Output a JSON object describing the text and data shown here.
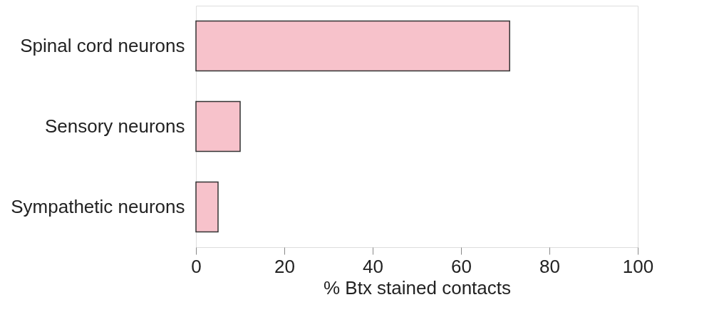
{
  "chart_data": {
    "type": "bar",
    "orientation": "horizontal",
    "xlabel": "% Btx stained contacts",
    "categories": [
      "Spinal cord neurons",
      "Sensory neurons",
      "Sympathetic neurons"
    ],
    "values": [
      71,
      10,
      5
    ],
    "color": "#f7c2cb",
    "xlim": [
      0,
      100
    ],
    "xticks": [
      0,
      20,
      40,
      60,
      80,
      100
    ],
    "grid": false
  }
}
